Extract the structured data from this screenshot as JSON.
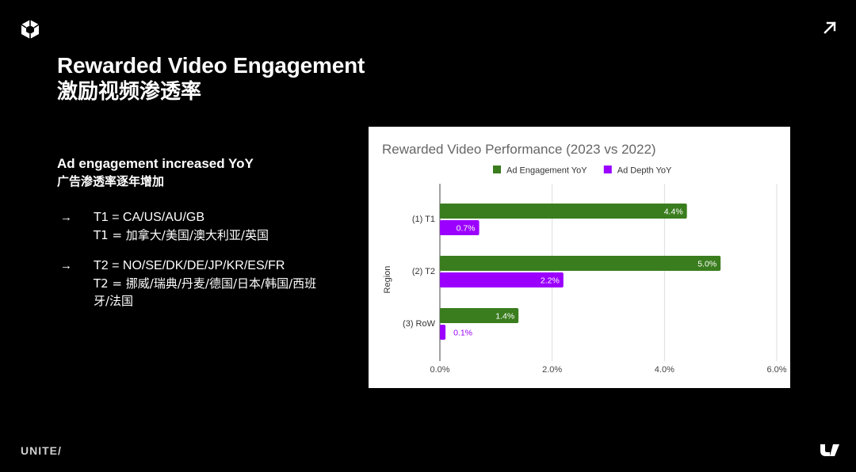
{
  "header": {
    "title": "Rewarded Video Engagement",
    "subtitle": "激励视频渗透率",
    "logo_icon": "unity-cube-icon",
    "external_link_icon": "arrow-up-right-icon"
  },
  "left": {
    "heading": "Ad engagement increased YoY",
    "heading_cn": "广告渗透率逐年增加",
    "bullets": [
      {
        "arrow": "→",
        "lines": [
          "T1 = CA/US/AU/GB",
          "T1 = 加拿大/美国/澳大利亚/英国"
        ]
      },
      {
        "arrow": "→",
        "lines": [
          "T2 = NO/SE/DK/DE/JP/KR/ES/FR",
          "T2 = 挪威/瑞典/丹麦/德国/日本/韩国/西班牙/法国"
        ]
      }
    ]
  },
  "footer": {
    "brand": "UNITE/",
    "u_logo_icon": "unity-u-logo-icon"
  },
  "chart_data": {
    "type": "bar",
    "orientation": "horizontal",
    "title": "Rewarded Video Performance (2023 vs 2022)",
    "ylabel": "Region",
    "xlabel": "",
    "categories": [
      "(1) T1",
      "(2) T2",
      "(3) RoW"
    ],
    "series": [
      {
        "name": "Ad Engagement YoY",
        "color": "#3a7d1e",
        "values": [
          4.4,
          5.0,
          1.4
        ],
        "labels": [
          "4.4%",
          "5.0%",
          "1.4%"
        ]
      },
      {
        "name": "Ad Depth YoY",
        "color": "#9b00ff",
        "values": [
          0.7,
          2.2,
          0.1
        ],
        "labels": [
          "0.7%",
          "2.2%",
          "0.1%"
        ]
      }
    ],
    "xlim": [
      0,
      6
    ],
    "xticks": [
      0,
      2,
      4,
      6
    ],
    "xtick_labels": [
      "0.0%",
      "2.0%",
      "4.0%",
      "6.0%"
    ],
    "grid": true,
    "legend": "top-center"
  }
}
